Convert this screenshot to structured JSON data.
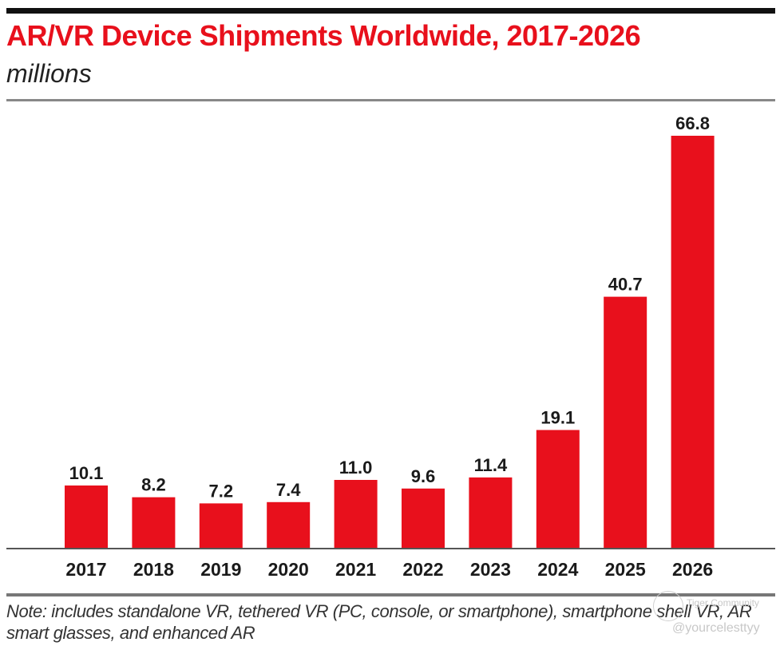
{
  "header": {
    "title": "AR/VR Device Shipments Worldwide, 2017-2026",
    "subtitle": "millions"
  },
  "footer": {
    "note": "Note: includes standalone VR, tethered VR (PC, console, or smartphone), smartphone shell VR, AR smart glasses, and enhanced AR"
  },
  "watermark": {
    "brand": "Tiger Community",
    "handle": "@yourcelesttyy",
    "icon": "tiger-logo-icon"
  },
  "colors": {
    "bar": "#e8101c",
    "title": "#e8101c",
    "axis": "#555555",
    "label": "#1a1a1a"
  },
  "chart_data": {
    "type": "bar",
    "title": "AR/VR Device Shipments Worldwide, 2017-2026",
    "subtitle": "millions",
    "xlabel": "",
    "ylabel": "millions",
    "categories": [
      "2017",
      "2018",
      "2019",
      "2020",
      "2021",
      "2022",
      "2023",
      "2024",
      "2025",
      "2026"
    ],
    "values": [
      10.1,
      8.2,
      7.2,
      7.4,
      11.0,
      9.6,
      11.4,
      19.1,
      40.7,
      66.8
    ],
    "data_labels": [
      "10.1",
      "8.2",
      "7.2",
      "7.4",
      "11.0",
      "9.6",
      "11.4",
      "19.1",
      "40.7",
      "66.8"
    ],
    "ylim": [
      0,
      66.8
    ],
    "grid": false,
    "legend": "none",
    "note": "Note: includes standalone VR, tethered VR (PC, console, or smartphone), smartphone shell VR, AR smart glasses, and enhanced AR"
  }
}
